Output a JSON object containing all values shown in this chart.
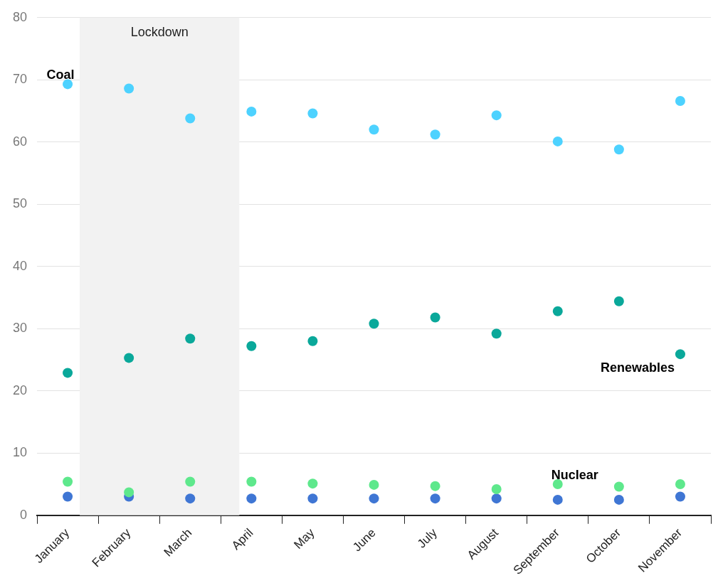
{
  "chart_data": {
    "type": "scatter",
    "categories": [
      "January",
      "February",
      "March",
      "April",
      "May",
      "June",
      "July",
      "August",
      "September",
      "October",
      "November"
    ],
    "series": [
      {
        "name": "Coal",
        "color": "#4dd2ff",
        "values": [
          69.3,
          68.6,
          63.8,
          64.9,
          64.6,
          62.0,
          61.2,
          64.3,
          60.1,
          58.8,
          66.6
        ]
      },
      {
        "name": "Renewables",
        "color": "#0aa89a",
        "values": [
          22.9,
          25.3,
          28.4,
          27.2,
          28.0,
          30.8,
          31.8,
          29.2,
          32.8,
          34.4,
          25.9
        ]
      },
      {
        "name": "Nuclear",
        "color": "#5ee88c",
        "values": [
          5.4,
          3.7,
          5.4,
          5.4,
          5.1,
          4.9,
          4.7,
          4.2,
          5.0,
          4.6,
          5.0
        ]
      },
      {
        "color": "#3f76d4",
        "values": [
          3.0,
          3.0,
          2.7,
          2.7,
          2.7,
          2.7,
          2.7,
          2.7,
          2.5,
          2.5,
          3.0
        ]
      }
    ],
    "ylim": [
      0,
      80
    ],
    "yticks": [
      0,
      10,
      20,
      30,
      40,
      50,
      60,
      70,
      80
    ],
    "grid": "y",
    "legend": false,
    "marker": "circle",
    "bands": [
      {
        "axis": "x",
        "from": "January",
        "to": "April",
        "label": "Lockdown",
        "color": "#f2f2f2"
      }
    ]
  }
}
